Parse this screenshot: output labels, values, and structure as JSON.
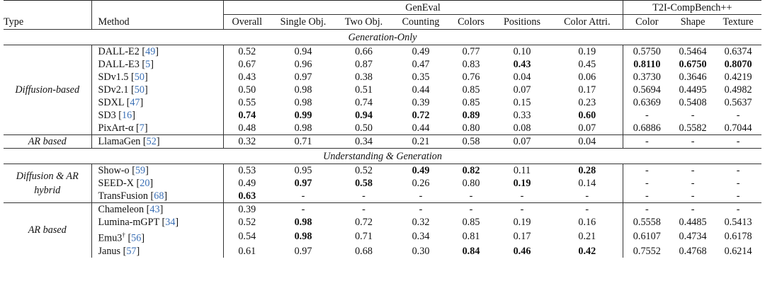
{
  "headers": {
    "type": "Type",
    "method": "Method",
    "geneval_group": "GenEval",
    "t2i_group": "T2I-CompBench++",
    "geneval_cols": [
      "Overall",
      "Single Obj.",
      "Two Obj.",
      "Counting",
      "Colors",
      "Positions",
      "Color Attri."
    ],
    "t2i_cols": [
      "Color",
      "Shape",
      "Texture"
    ]
  },
  "sections": {
    "gen_only": "Generation-Only",
    "und_gen": "Understanding & Generation"
  },
  "types": {
    "diffusion": "Diffusion-based",
    "ar1": "AR based",
    "hybrid_line1": "Diffusion & AR",
    "hybrid_line2": "hybrid",
    "ar2": "AR based"
  },
  "rows": [
    {
      "name": "DALL-E2",
      "cite": "49",
      "vals": [
        "0.52",
        "0.94",
        "0.66",
        "0.49",
        "0.77",
        "0.10",
        "0.19",
        "0.5750",
        "0.5464",
        "0.6374"
      ]
    },
    {
      "name": "DALL-E3",
      "cite": "5",
      "vals": [
        "0.67",
        "0.96",
        "0.87",
        "0.47",
        "0.83",
        "0.43",
        "0.45",
        "0.8110",
        "0.6750",
        "0.8070"
      ]
    },
    {
      "name": "SDv1.5",
      "cite": "50",
      "vals": [
        "0.43",
        "0.97",
        "0.38",
        "0.35",
        "0.76",
        "0.04",
        "0.06",
        "0.3730",
        "0.3646",
        "0.4219"
      ]
    },
    {
      "name": "SDv2.1",
      "cite": "50",
      "vals": [
        "0.50",
        "0.98",
        "0.51",
        "0.44",
        "0.85",
        "0.07",
        "0.17",
        "0.5694",
        "0.4495",
        "0.4982"
      ]
    },
    {
      "name": "SDXL",
      "cite": "47",
      "vals": [
        "0.55",
        "0.98",
        "0.74",
        "0.39",
        "0.85",
        "0.15",
        "0.23",
        "0.6369",
        "0.5408",
        "0.5637"
      ]
    },
    {
      "name": "SD3",
      "cite": "16",
      "vals": [
        "0.74",
        "0.99",
        "0.94",
        "0.72",
        "0.89",
        "0.33",
        "0.60",
        "-",
        "-",
        "-"
      ]
    },
    {
      "name": "PixArt-α",
      "cite": "7",
      "vals": [
        "0.48",
        "0.98",
        "0.50",
        "0.44",
        "0.80",
        "0.08",
        "0.07",
        "0.6886",
        "0.5582",
        "0.7044"
      ]
    },
    {
      "name": "LlamaGen",
      "cite": "52",
      "vals": [
        "0.32",
        "0.71",
        "0.34",
        "0.21",
        "0.58",
        "0.07",
        "0.04",
        "-",
        "-",
        "-"
      ]
    },
    {
      "name": "Show-o",
      "cite": "59",
      "vals": [
        "0.53",
        "0.95",
        "0.52",
        "0.49",
        "0.82",
        "0.11",
        "0.28",
        "-",
        "-",
        "-"
      ]
    },
    {
      "name": "SEED-X",
      "cite": "20",
      "vals": [
        "0.49",
        "0.97",
        "0.58",
        "0.26",
        "0.80",
        "0.19",
        "0.14",
        "-",
        "-",
        "-"
      ]
    },
    {
      "name": "TransFusion",
      "cite": "68",
      "vals": [
        "0.63",
        "-",
        "-",
        "-",
        "-",
        "-",
        "-",
        "-",
        "-",
        "-"
      ]
    },
    {
      "name": "Chameleon",
      "cite": "43",
      "vals": [
        "0.39",
        "-",
        "-",
        "-",
        "-",
        "-",
        "-",
        "-",
        "-",
        "-"
      ]
    },
    {
      "name": "Lumina-mGPT",
      "cite": "34",
      "vals": [
        "0.52",
        "0.98",
        "0.72",
        "0.32",
        "0.85",
        "0.19",
        "0.16",
        "0.5558",
        "0.4485",
        "0.5413"
      ]
    },
    {
      "name": "Emu3",
      "sup": "†",
      "cite": "56",
      "vals": [
        "0.54",
        "0.98",
        "0.71",
        "0.34",
        "0.81",
        "0.17",
        "0.21",
        "0.6107",
        "0.4734",
        "0.6178"
      ]
    },
    {
      "name": "Janus",
      "cite": "57",
      "vals": [
        "0.61",
        "0.97",
        "0.68",
        "0.30",
        "0.84",
        "0.46",
        "0.42",
        "0.7552",
        "0.4768",
        "0.6214"
      ]
    }
  ]
}
